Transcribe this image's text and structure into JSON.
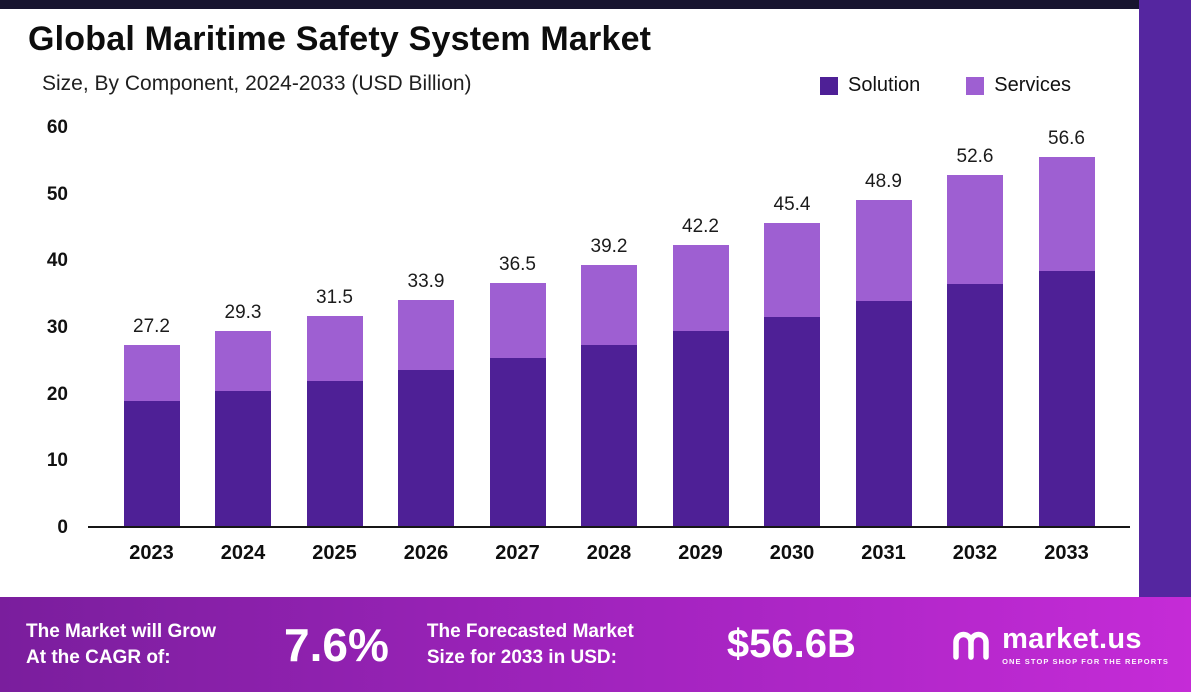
{
  "header": {
    "title": "Global Maritime Safety System Market",
    "subtitle": "Size, By Component, 2024-2033 (USD Billion)"
  },
  "legend": [
    {
      "label": "Solution",
      "color": "#4e2096"
    },
    {
      "label": "Services",
      "color": "#9e5fd2"
    }
  ],
  "chart_data": {
    "type": "bar",
    "stacked": true,
    "title": "Global Maritime Safety System Market Size, By Component, 2024-2033 (USD Billion)",
    "categories": [
      "2023",
      "2024",
      "2025",
      "2026",
      "2027",
      "2028",
      "2029",
      "2030",
      "2031",
      "2032",
      "2033"
    ],
    "series": [
      {
        "name": "Solution",
        "color": "#4e2096",
        "values": [
          18.8,
          20.2,
          21.8,
          23.4,
          25.2,
          27.1,
          29.2,
          31.4,
          33.8,
          36.3,
          39.1
        ]
      },
      {
        "name": "Services",
        "color": "#9e5fd2",
        "values": [
          8.4,
          9.1,
          9.7,
          10.5,
          11.3,
          12.1,
          13.0,
          14.0,
          15.1,
          16.3,
          17.5
        ]
      }
    ],
    "totals": [
      27.2,
      29.3,
      31.5,
      33.9,
      36.5,
      39.2,
      42.2,
      45.4,
      48.9,
      52.6,
      56.6
    ],
    "xlabel": "",
    "ylabel": "",
    "ylim": [
      0,
      60
    ],
    "yticks": [
      0,
      10,
      20,
      30,
      40,
      50,
      60
    ],
    "grid": false,
    "legend_position": "top-right"
  },
  "banner": {
    "cagr_label": "The Market will Grow\nAt the CAGR of:",
    "cagr_value": "7.6%",
    "forecast_label": "The Forecasted Market\nSize for 2033 in USD:",
    "forecast_value": "$56.6B",
    "logo_name": "market.us",
    "logo_tagline": "ONE STOP SHOP FOR THE REPORTS"
  },
  "colors": {
    "solution": "#4e2096",
    "services": "#9e5fd2",
    "right_strip": "#5526a0",
    "top_strip": "#18152f",
    "banner_gradient_start": "#7a1e9d",
    "banner_gradient_end": "#c52bd7"
  }
}
